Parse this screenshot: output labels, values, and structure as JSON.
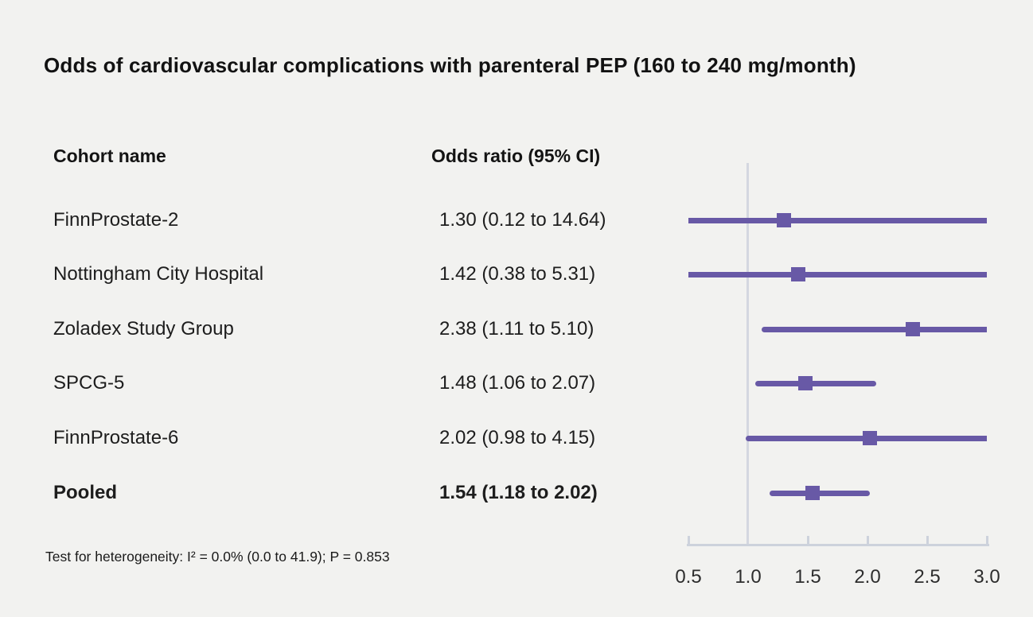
{
  "title": "Odds of cardiovascular complications with parenteral PEP (160 to 240 mg/month)",
  "columns": {
    "cohort": "Cohort name",
    "odds": "Odds ratio (95% CI)"
  },
  "footer": "Test for heterogeneity: I² = 0.0% (0.0 to 41.9); P = 0.853",
  "colors": {
    "background": "#f2f2f0",
    "accent_purple": "#6859a6",
    "axis": "#cdd2dc",
    "reference_line": "#d4d7e0",
    "text": "#1d1d1d"
  },
  "chart_data": {
    "type": "forest",
    "title": "Odds of cardiovascular complications with parenteral PEP (160 to 240 mg/month)",
    "xlabel": "",
    "ylabel": "",
    "axis": {
      "min": 0.5,
      "max": 3.0,
      "ticks": [
        0.5,
        1.0,
        1.5,
        2.0,
        2.5,
        3.0
      ],
      "tick_labels": [
        "0.5",
        "1.0",
        "1.5",
        "2.0",
        "2.5",
        "3.0"
      ],
      "reference_line": 1.0,
      "scale": "linear",
      "grid": false
    },
    "rows": [
      {
        "name": "FinnProstate-2",
        "label": "1.30 (0.12 to 14.64)",
        "or": 1.3,
        "ci_low": 0.12,
        "ci_high": 14.64,
        "pooled": false
      },
      {
        "name": "Nottingham City Hospital",
        "label": "1.42 (0.38 to 5.31)",
        "or": 1.42,
        "ci_low": 0.38,
        "ci_high": 5.31,
        "pooled": false
      },
      {
        "name": "Zoladex Study Group",
        "label": "2.38 (1.11 to 5.10)",
        "or": 2.38,
        "ci_low": 1.11,
        "ci_high": 5.1,
        "pooled": false
      },
      {
        "name": "SPCG-5",
        "label": "1.48 (1.06 to 2.07)",
        "or": 1.48,
        "ci_low": 1.06,
        "ci_high": 2.07,
        "pooled": false
      },
      {
        "name": "FinnProstate-6",
        "label": "2.02 (0.98 to 4.15)",
        "or": 2.02,
        "ci_low": 0.98,
        "ci_high": 4.15,
        "pooled": false
      },
      {
        "name": "Pooled",
        "label": "1.54 (1.18 to 2.02)",
        "or": 1.54,
        "ci_low": 1.18,
        "ci_high": 2.02,
        "pooled": true
      }
    ]
  }
}
